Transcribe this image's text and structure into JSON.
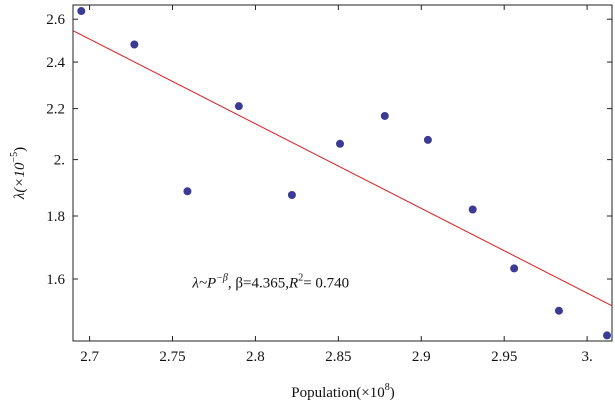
{
  "chart_data": {
    "type": "scatter",
    "title": "",
    "xlabel": "Population(×10",
    "xlabel_exp": "8",
    "xlabel_close": ")",
    "ylabel": "λ(×10",
    "ylabel_exp": "−5",
    "ylabel_close": ")",
    "xlim": [
      2.69,
      3.015
    ],
    "ylim": [
      1.425,
      2.67
    ],
    "y_scale": "log",
    "grid": false,
    "x_ticks": [
      {
        "value": 2.7,
        "label": "2.7"
      },
      {
        "value": 2.75,
        "label": "2.75"
      },
      {
        "value": 2.8,
        "label": "2.8"
      },
      {
        "value": 2.85,
        "label": "2.85"
      },
      {
        "value": 2.9,
        "label": "2.9"
      },
      {
        "value": 2.95,
        "label": "2.95"
      },
      {
        "value": 3.0,
        "label": "3."
      }
    ],
    "y_ticks": [
      {
        "value": 1.6,
        "label": "1.6"
      },
      {
        "value": 1.8,
        "label": "1.8"
      },
      {
        "value": 2.0,
        "label": "2."
      },
      {
        "value": 2.2,
        "label": "2.2"
      },
      {
        "value": 2.4,
        "label": "2.4"
      },
      {
        "value": 2.6,
        "label": "2.6"
      }
    ],
    "series": [
      {
        "marker": "point",
        "color": "#3b3b96",
        "points": [
          {
            "x": 2.695,
            "y": 2.64
          },
          {
            "x": 2.727,
            "y": 2.48
          },
          {
            "x": 2.759,
            "y": 1.885
          },
          {
            "x": 2.79,
            "y": 2.21
          },
          {
            "x": 2.822,
            "y": 1.872
          },
          {
            "x": 2.851,
            "y": 2.06
          },
          {
            "x": 2.878,
            "y": 2.17
          },
          {
            "x": 2.904,
            "y": 2.075
          },
          {
            "x": 2.931,
            "y": 1.822
          },
          {
            "x": 2.956,
            "y": 1.632
          },
          {
            "x": 2.983,
            "y": 1.508
          },
          {
            "x": 3.012,
            "y": 1.44
          }
        ]
      }
    ],
    "fit_line": {
      "color": "#e01b1b",
      "x": [
        2.69,
        3.015
      ],
      "y": [
        2.545,
        1.522
      ]
    },
    "annotation": {
      "prefix": "λ~P",
      "exp": "−β",
      "beta_text": ", β=4.365,",
      "r": "R",
      "r_exp": "2",
      "r_value": "= 0.740",
      "x": 2.762,
      "y": 1.575
    }
  }
}
